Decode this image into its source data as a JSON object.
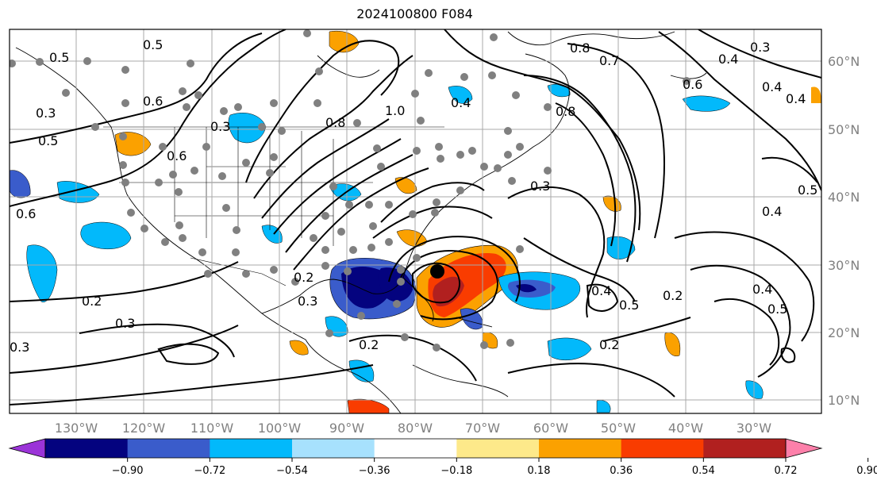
{
  "title": "2024100800 F084",
  "longitude_labels": [
    "130°W",
    "120°W",
    "110°W",
    "100°W",
    "90°W",
    "80°W",
    "70°W",
    "60°W",
    "50°W",
    "40°W",
    "30°W"
  ],
  "latitude_labels": [
    "60°N",
    "50°N",
    "40°N",
    "30°N",
    "20°N",
    "10°N"
  ],
  "colorbar": {
    "ticks": [
      "−0.90",
      "−0.72",
      "−0.54",
      "−0.36",
      "−0.18",
      "0.18",
      "0.36",
      "0.54",
      "0.72",
      "0.90"
    ],
    "colors": [
      "#9b34d8",
      "#04037f",
      "#3a5ccb",
      "#02b9fb",
      "#a7e1fd",
      "#ffffff",
      "#fde98a",
      "#fba100",
      "#f93c00",
      "#b1201f",
      "#fd80aa"
    ]
  },
  "contour_labels": [
    "0.5",
    "0.6",
    "0.3",
    "0.5",
    "0.2",
    "0.3",
    "0.3",
    "0.8",
    "0.7",
    "0.4",
    "0.3",
    "0.6",
    "0.4",
    "0.8",
    "0.3",
    "0.5",
    "0.4",
    "0.4",
    "0.5",
    "0.2",
    "0.4",
    "0.5",
    "0.2",
    "0.6",
    "0.6",
    "0.3",
    "0.4",
    "0.5",
    "1.0",
    "0.4",
    "0.8",
    "0.2",
    "0.3",
    "0.2"
  ]
}
